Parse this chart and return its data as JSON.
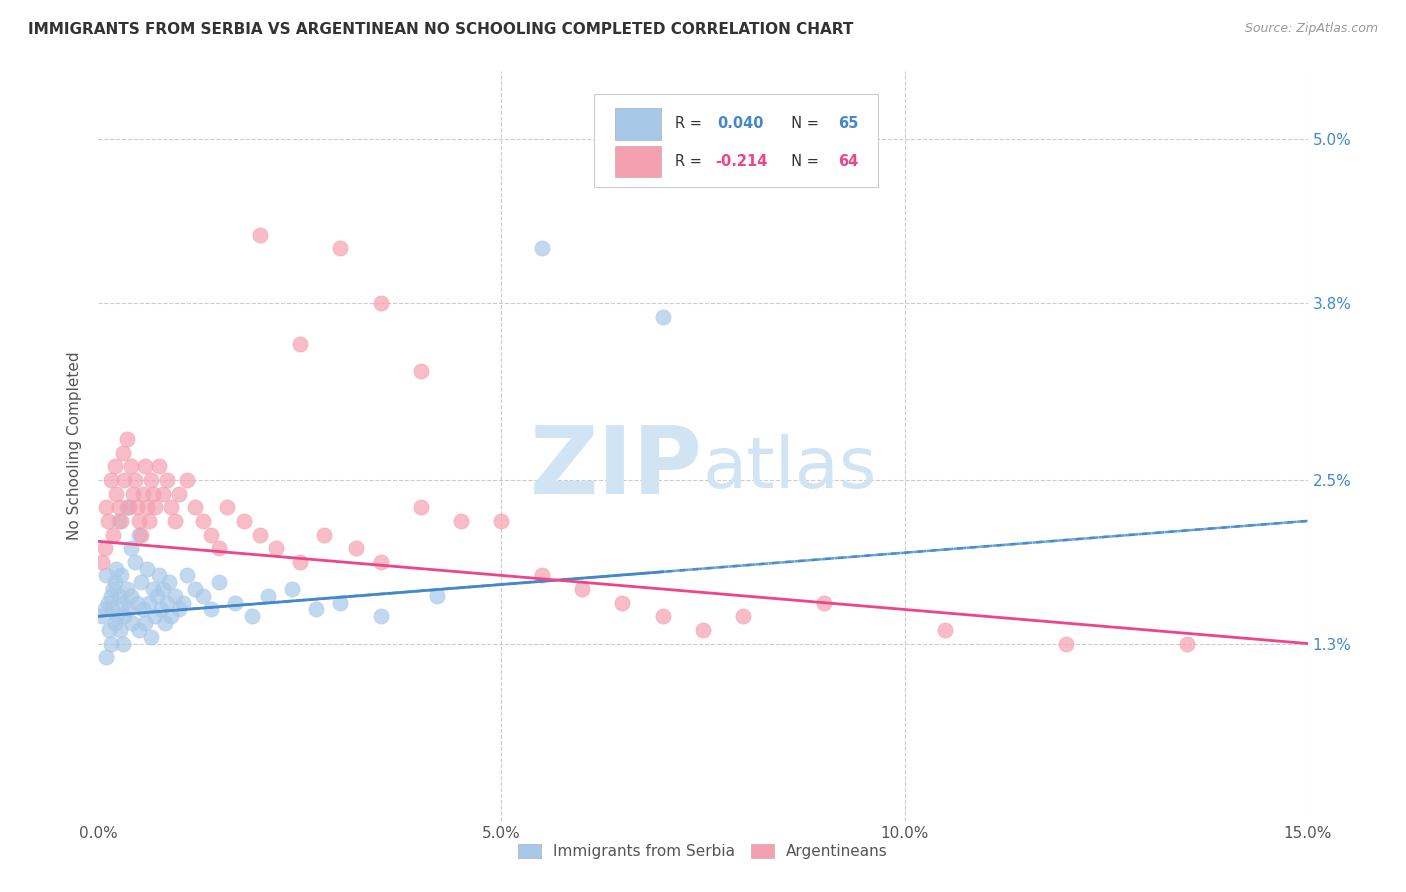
{
  "title": "IMMIGRANTS FROM SERBIA VS ARGENTINEAN NO SCHOOLING COMPLETED CORRELATION CHART",
  "source": "Source: ZipAtlas.com",
  "ylabel": "No Schooling Completed",
  "ytick_values": [
    1.3,
    2.5,
    3.8,
    5.0
  ],
  "ytick_labels": [
    "1.3%",
    "2.5%",
    "3.8%",
    "5.0%"
  ],
  "xtick_positions": [
    0,
    5,
    10,
    15
  ],
  "xtick_labels": [
    "0.0%",
    "5.0%",
    "10.0%",
    "15.0%"
  ],
  "xlim": [
    0.0,
    15.0
  ],
  "ylim": [
    0.0,
    5.5
  ],
  "r_serbia": "0.040",
  "r_argentina": "-0.214",
  "n_serbia": "65",
  "n_argentina": "64",
  "color_serbia": "#a8c8e8",
  "color_argentina": "#f4a0b0",
  "line_color_serbia": "#4488cc",
  "line_color_argentina": "#ee4488",
  "watermark_color": "#d0e4f4",
  "serbia_x": [
    0.05,
    0.08,
    0.1,
    0.1,
    0.12,
    0.13,
    0.15,
    0.15,
    0.17,
    0.18,
    0.2,
    0.2,
    0.22,
    0.23,
    0.25,
    0.25,
    0.27,
    0.28,
    0.3,
    0.3,
    0.32,
    0.35,
    0.35,
    0.37,
    0.4,
    0.4,
    0.42,
    0.45,
    0.48,
    0.5,
    0.5,
    0.53,
    0.55,
    0.58,
    0.6,
    0.63,
    0.65,
    0.68,
    0.7,
    0.73,
    0.75,
    0.78,
    0.8,
    0.83,
    0.85,
    0.88,
    0.9,
    0.95,
    1.0,
    1.05,
    1.1,
    1.2,
    1.3,
    1.4,
    1.5,
    1.7,
    1.9,
    2.1,
    2.4,
    2.7,
    3.0,
    3.5,
    4.2,
    5.5,
    7.0
  ],
  "serbia_y": [
    1.5,
    1.55,
    1.8,
    1.2,
    1.6,
    1.4,
    1.65,
    1.3,
    1.55,
    1.7,
    1.45,
    1.75,
    1.85,
    1.5,
    2.2,
    1.65,
    1.4,
    1.8,
    1.6,
    1.3,
    1.5,
    2.3,
    1.7,
    1.55,
    2.0,
    1.65,
    1.45,
    1.9,
    1.6,
    2.1,
    1.4,
    1.75,
    1.55,
    1.45,
    1.85,
    1.6,
    1.35,
    1.7,
    1.5,
    1.65,
    1.8,
    1.55,
    1.7,
    1.45,
    1.6,
    1.75,
    1.5,
    1.65,
    1.55,
    1.6,
    1.8,
    1.7,
    1.65,
    1.55,
    1.75,
    1.6,
    1.5,
    1.65,
    1.7,
    1.55,
    1.6,
    1.5,
    1.65,
    4.2,
    3.7
  ],
  "argentina_x": [
    0.05,
    0.08,
    0.1,
    0.12,
    0.15,
    0.18,
    0.2,
    0.22,
    0.25,
    0.28,
    0.3,
    0.32,
    0.35,
    0.38,
    0.4,
    0.43,
    0.45,
    0.48,
    0.5,
    0.53,
    0.55,
    0.58,
    0.6,
    0.63,
    0.65,
    0.68,
    0.7,
    0.75,
    0.8,
    0.85,
    0.9,
    0.95,
    1.0,
    1.1,
    1.2,
    1.3,
    1.4,
    1.5,
    1.6,
    1.8,
    2.0,
    2.2,
    2.5,
    2.8,
    3.2,
    3.5,
    4.0,
    4.5,
    5.5,
    6.0,
    6.5,
    7.0,
    7.5,
    8.0,
    9.0,
    10.5,
    12.0,
    13.5,
    2.0,
    2.5,
    3.0,
    3.5,
    4.0,
    5.0
  ],
  "argentina_y": [
    1.9,
    2.0,
    2.3,
    2.2,
    2.5,
    2.1,
    2.6,
    2.4,
    2.3,
    2.2,
    2.7,
    2.5,
    2.8,
    2.3,
    2.6,
    2.4,
    2.5,
    2.3,
    2.2,
    2.1,
    2.4,
    2.6,
    2.3,
    2.2,
    2.5,
    2.4,
    2.3,
    2.6,
    2.4,
    2.5,
    2.3,
    2.2,
    2.4,
    2.5,
    2.3,
    2.2,
    2.1,
    2.0,
    2.3,
    2.2,
    2.1,
    2.0,
    1.9,
    2.1,
    2.0,
    1.9,
    2.3,
    2.2,
    1.8,
    1.7,
    1.6,
    1.5,
    1.4,
    1.5,
    1.6,
    1.4,
    1.3,
    1.3,
    4.3,
    3.5,
    4.2,
    3.8,
    3.3,
    2.2
  ]
}
